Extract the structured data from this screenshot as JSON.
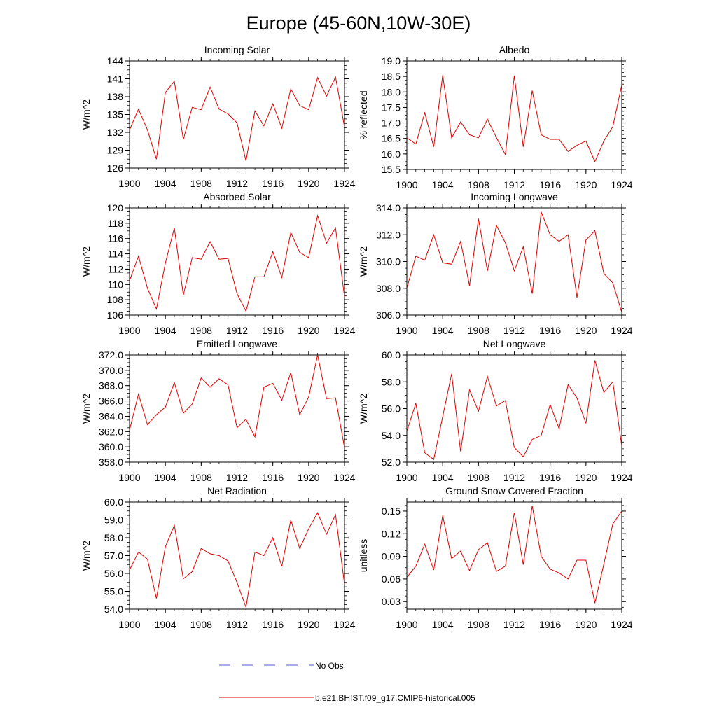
{
  "figure": {
    "title": "Europe (45-60N,10W-30E)",
    "legend": [
      {
        "label": "No Obs",
        "color": "#5555cc",
        "style": "dashed"
      },
      {
        "label": "b.e21.BHIST.f09_g17.CMIP6-historical.005",
        "color": "#e00000",
        "style": "solid"
      }
    ],
    "series_color": "#e00000"
  },
  "chart_data": [
    {
      "type": "line",
      "title": "Incoming Solar",
      "ylabel": "W/m^2",
      "x": [
        1900,
        1901,
        1902,
        1903,
        1904,
        1905,
        1906,
        1907,
        1908,
        1909,
        1910,
        1911,
        1912,
        1913,
        1914,
        1915,
        1916,
        1917,
        1918,
        1919,
        1920,
        1921,
        1922,
        1923,
        1924
      ],
      "values": [
        132.4,
        135.9,
        132.4,
        127.5,
        138.7,
        140.6,
        130.8,
        136.2,
        135.8,
        139.6,
        135.9,
        135.1,
        133.6,
        127.2,
        135.6,
        133.1,
        136.8,
        132.7,
        139.3,
        136.5,
        135.8,
        141.2,
        138.1,
        141.3,
        132.9
      ],
      "xlim": [
        1900,
        1924
      ],
      "ylim": [
        126,
        144
      ],
      "yticks": [
        126,
        129,
        132,
        135,
        138,
        141,
        144
      ],
      "ytick_labels": [
        "126",
        "129",
        "132",
        "135",
        "138",
        "141",
        "144"
      ],
      "xticks": [
        1900,
        1904,
        1908,
        1912,
        1916,
        1920,
        1924
      ],
      "xtick_labels": [
        "1900",
        "1904",
        "1908",
        "1912",
        "1916",
        "1920",
        "1924"
      ]
    },
    {
      "type": "line",
      "title": "Albedo",
      "ylabel": "% reflected",
      "x": [
        1900,
        1901,
        1902,
        1903,
        1904,
        1905,
        1906,
        1907,
        1908,
        1909,
        1910,
        1911,
        1912,
        1913,
        1914,
        1915,
        1916,
        1917,
        1918,
        1919,
        1920,
        1921,
        1922,
        1923,
        1924
      ],
      "values": [
        16.52,
        16.32,
        17.33,
        16.23,
        18.54,
        16.52,
        17.03,
        16.62,
        16.52,
        17.12,
        16.53,
        15.98,
        18.52,
        16.23,
        18.04,
        16.62,
        16.47,
        16.47,
        16.08,
        16.28,
        16.42,
        15.75,
        16.42,
        16.88,
        18.23
      ],
      "xlim": [
        1900,
        1924
      ],
      "ylim": [
        15.5,
        19.0
      ],
      "yticks": [
        15.5,
        16.0,
        16.5,
        17.0,
        17.5,
        18.0,
        18.5,
        19.0
      ],
      "ytick_labels": [
        "15.5",
        "16.0",
        "16.5",
        "17.0",
        "17.5",
        "18.0",
        "18.5",
        "19.0"
      ],
      "xticks": [
        1900,
        1904,
        1908,
        1912,
        1916,
        1920,
        1924
      ],
      "xtick_labels": [
        "1900",
        "1904",
        "1908",
        "1912",
        "1916",
        "1920",
        "1924"
      ]
    },
    {
      "type": "line",
      "title": "Absorbed Solar",
      "ylabel": "W/m^2",
      "x": [
        1900,
        1901,
        1902,
        1903,
        1904,
        1905,
        1906,
        1907,
        1908,
        1909,
        1910,
        1911,
        1912,
        1913,
        1914,
        1915,
        1916,
        1917,
        1918,
        1919,
        1920,
        1921,
        1922,
        1923,
        1924
      ],
      "values": [
        110.5,
        113.7,
        109.5,
        106.8,
        112.8,
        117.4,
        108.6,
        113.5,
        113.3,
        115.6,
        113.3,
        113.4,
        108.8,
        106.5,
        111.0,
        111.0,
        114.3,
        110.9,
        116.8,
        114.2,
        113.5,
        119.0,
        115.4,
        117.4,
        108.4
      ],
      "xlim": [
        1900,
        1924
      ],
      "ylim": [
        106,
        120
      ],
      "yticks": [
        106,
        108,
        110,
        112,
        114,
        116,
        118,
        120
      ],
      "ytick_labels": [
        "106",
        "108",
        "110",
        "112",
        "114",
        "116",
        "118",
        "120"
      ],
      "xticks": [
        1900,
        1904,
        1908,
        1912,
        1916,
        1920,
        1924
      ],
      "xtick_labels": [
        "1900",
        "1904",
        "1908",
        "1912",
        "1916",
        "1920",
        "1924"
      ]
    },
    {
      "type": "line",
      "title": "Incoming Longwave",
      "ylabel": "W/m^2",
      "x": [
        1900,
        1901,
        1902,
        1903,
        1904,
        1905,
        1906,
        1907,
        1908,
        1909,
        1910,
        1911,
        1912,
        1913,
        1914,
        1915,
        1916,
        1917,
        1918,
        1919,
        1920,
        1921,
        1922,
        1923,
        1924
      ],
      "values": [
        308.0,
        310.4,
        310.1,
        312.0,
        309.9,
        309.8,
        311.5,
        308.2,
        313.2,
        309.3,
        312.7,
        311.4,
        309.3,
        311.1,
        307.6,
        313.7,
        312.0,
        311.5,
        312.0,
        307.3,
        311.6,
        312.3,
        309.1,
        308.4,
        306.2
      ],
      "xlim": [
        1900,
        1924
      ],
      "ylim": [
        306,
        314
      ],
      "yticks": [
        306,
        308,
        310,
        312,
        314
      ],
      "ytick_labels": [
        "306.0",
        "308.0",
        "310.0",
        "312.0",
        "314.0"
      ],
      "xticks": [
        1900,
        1904,
        1908,
        1912,
        1916,
        1920,
        1924
      ],
      "xtick_labels": [
        "1900",
        "1904",
        "1908",
        "1912",
        "1916",
        "1920",
        "1924"
      ]
    },
    {
      "type": "line",
      "title": "Emitted Longwave",
      "ylabel": "W/m^2",
      "x": [
        1900,
        1901,
        1902,
        1903,
        1904,
        1905,
        1906,
        1907,
        1908,
        1909,
        1910,
        1911,
        1912,
        1913,
        1914,
        1915,
        1916,
        1917,
        1918,
        1919,
        1920,
        1921,
        1922,
        1923,
        1924
      ],
      "values": [
        362.2,
        366.9,
        362.9,
        364.2,
        365.2,
        368.4,
        364.4,
        365.6,
        369.0,
        367.8,
        368.9,
        368.1,
        362.5,
        363.6,
        361.3,
        367.8,
        368.3,
        366.1,
        369.7,
        364.2,
        366.5,
        372.0,
        366.3,
        366.4,
        359.9
      ],
      "xlim": [
        1900,
        1924
      ],
      "ylim": [
        358,
        372
      ],
      "yticks": [
        358,
        360,
        362,
        364,
        366,
        368,
        370,
        372
      ],
      "ytick_labels": [
        "358.0",
        "360.0",
        "362.0",
        "364.0",
        "366.0",
        "368.0",
        "370.0",
        "372.0"
      ],
      "xticks": [
        1900,
        1904,
        1908,
        1912,
        1916,
        1920,
        1924
      ],
      "xtick_labels": [
        "1900",
        "1904",
        "1908",
        "1912",
        "1916",
        "1920",
        "1924"
      ]
    },
    {
      "type": "line",
      "title": "Net Longwave",
      "ylabel": "W/m^2",
      "x": [
        1900,
        1901,
        1902,
        1903,
        1904,
        1905,
        1906,
        1907,
        1908,
        1909,
        1910,
        1911,
        1912,
        1913,
        1914,
        1915,
        1916,
        1917,
        1918,
        1919,
        1920,
        1921,
        1922,
        1923,
        1924
      ],
      "values": [
        54.3,
        56.4,
        52.7,
        52.2,
        55.4,
        58.6,
        52.8,
        57.4,
        55.8,
        58.4,
        56.2,
        56.6,
        53.1,
        52.4,
        53.7,
        54.0,
        56.3,
        54.5,
        57.8,
        56.8,
        54.9,
        59.6,
        57.2,
        58.0,
        53.2
      ],
      "xlim": [
        1900,
        1924
      ],
      "ylim": [
        52,
        60
      ],
      "yticks": [
        52,
        54,
        56,
        58,
        60
      ],
      "ytick_labels": [
        "52.0",
        "54.0",
        "56.0",
        "58.0",
        "60.0"
      ],
      "xticks": [
        1900,
        1904,
        1908,
        1912,
        1916,
        1920,
        1924
      ],
      "xtick_labels": [
        "1900",
        "1904",
        "1908",
        "1912",
        "1916",
        "1920",
        "1924"
      ]
    },
    {
      "type": "line",
      "title": "Net Radiation",
      "ylabel": "W/m^2",
      "x": [
        1900,
        1901,
        1902,
        1903,
        1904,
        1905,
        1906,
        1907,
        1908,
        1909,
        1910,
        1911,
        1912,
        1913,
        1914,
        1915,
        1916,
        1917,
        1918,
        1919,
        1920,
        1921,
        1922,
        1923,
        1924
      ],
      "values": [
        56.2,
        57.2,
        56.8,
        54.6,
        57.5,
        58.7,
        55.7,
        56.1,
        57.4,
        57.1,
        57.0,
        56.7,
        55.5,
        54.1,
        57.2,
        57.0,
        58.0,
        56.4,
        59.0,
        57.4,
        58.5,
        59.4,
        58.2,
        59.3,
        55.4
      ],
      "xlim": [
        1900,
        1924
      ],
      "ylim": [
        54,
        60
      ],
      "yticks": [
        54,
        55,
        56,
        57,
        58,
        59,
        60
      ],
      "ytick_labels": [
        "54.0",
        "55.0",
        "56.0",
        "57.0",
        "58.0",
        "59.0",
        "60.0"
      ],
      "xticks": [
        1900,
        1904,
        1908,
        1912,
        1916,
        1920,
        1924
      ],
      "xtick_labels": [
        "1900",
        "1904",
        "1908",
        "1912",
        "1916",
        "1920",
        "1924"
      ]
    },
    {
      "type": "line",
      "title": "Ground Snow Covered Fraction",
      "ylabel": "unitless",
      "x": [
        1900,
        1901,
        1902,
        1903,
        1904,
        1905,
        1906,
        1907,
        1908,
        1909,
        1910,
        1911,
        1912,
        1913,
        1914,
        1915,
        1916,
        1917,
        1918,
        1919,
        1920,
        1921,
        1922,
        1923,
        1924
      ],
      "values": [
        0.062,
        0.077,
        0.106,
        0.072,
        0.144,
        0.087,
        0.097,
        0.071,
        0.099,
        0.108,
        0.07,
        0.077,
        0.148,
        0.079,
        0.157,
        0.09,
        0.073,
        0.068,
        0.06,
        0.085,
        0.085,
        0.028,
        0.08,
        0.133,
        0.15
      ],
      "xlim": [
        1900,
        1924
      ],
      "ylim": [
        0.02,
        0.162
      ],
      "yticks": [
        0.03,
        0.06,
        0.09,
        0.12,
        0.15
      ],
      "ytick_labels": [
        "0.03",
        "0.06",
        "0.09",
        "0.12",
        "0.15"
      ],
      "xticks": [
        1900,
        1904,
        1908,
        1912,
        1916,
        1920,
        1924
      ],
      "xtick_labels": [
        "1900",
        "1904",
        "1908",
        "1912",
        "1916",
        "1920",
        "1924"
      ]
    }
  ]
}
